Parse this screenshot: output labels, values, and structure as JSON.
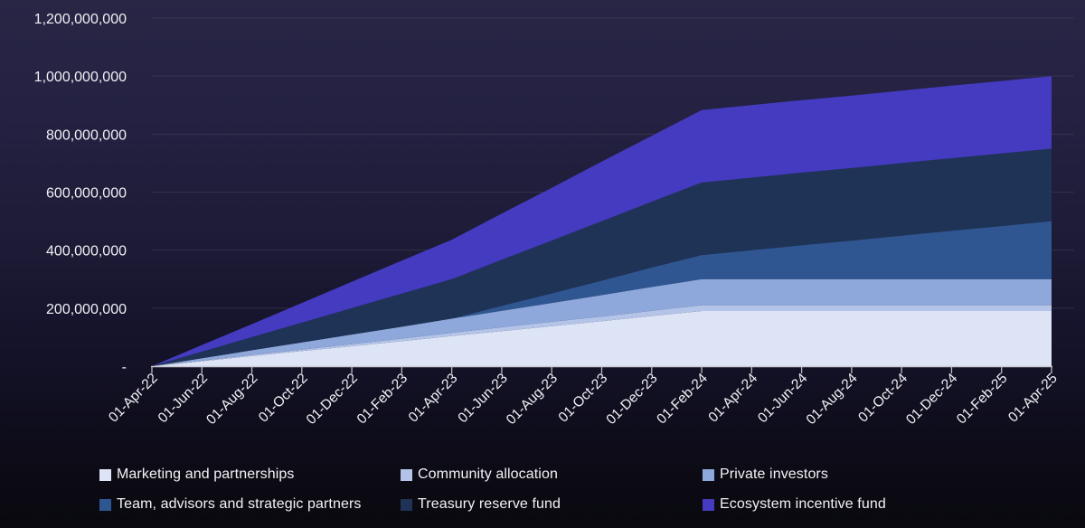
{
  "chart_data": {
    "type": "area",
    "stacked": true,
    "title": "",
    "xlabel": "",
    "ylabel": "",
    "grid": true,
    "legend_position": "bottom",
    "categories": [
      "01-Apr-22",
      "01-Jun-22",
      "01-Aug-22",
      "01-Oct-22",
      "01-Dec-22",
      "01-Feb-23",
      "01-Apr-23",
      "01-Jun-23",
      "01-Aug-23",
      "01-Oct-23",
      "01-Dec-23",
      "01-Feb-24",
      "01-Apr-24",
      "01-Jun-24",
      "01-Aug-24",
      "01-Oct-24",
      "01-Dec-24",
      "01-Feb-25",
      "01-Apr-25"
    ],
    "series": [
      {
        "name": "Marketing and partnerships",
        "color": "#dde4f5",
        "values": [
          0,
          17000000,
          35000000,
          52000000,
          69000000,
          86000000,
          104000000,
          121000000,
          138000000,
          155000000,
          173000000,
          190000000,
          190000000,
          190000000,
          190000000,
          190000000,
          190000000,
          190000000,
          190000000
        ]
      },
      {
        "name": "Community allocation",
        "color": "#b3c4e8",
        "values": [
          0,
          2000000,
          4000000,
          5000000,
          7000000,
          9000000,
          11000000,
          13000000,
          15000000,
          16000000,
          18000000,
          20000000,
          20000000,
          20000000,
          20000000,
          20000000,
          20000000,
          20000000,
          20000000
        ]
      },
      {
        "name": "Private investors",
        "color": "#8ea8db",
        "values": [
          0,
          8000000,
          16000000,
          25000000,
          33000000,
          41000000,
          49000000,
          57000000,
          65000000,
          74000000,
          82000000,
          90000000,
          90000000,
          90000000,
          90000000,
          90000000,
          90000000,
          90000000,
          90000000
        ]
      },
      {
        "name": "Team, advisors and strategic partners",
        "color": "#305692",
        "values": [
          0,
          0,
          0,
          0,
          0,
          0,
          0,
          17000000,
          33000000,
          50000000,
          67000000,
          83000000,
          100000000,
          117000000,
          133000000,
          150000000,
          167000000,
          183000000,
          200000000
        ]
      },
      {
        "name": "Treasury reserve fund",
        "color": "#1f3356",
        "values": [
          0,
          23000000,
          45000000,
          68000000,
          91000000,
          114000000,
          136000000,
          159000000,
          182000000,
          205000000,
          227000000,
          250000000,
          250000000,
          250000000,
          250000000,
          250000000,
          250000000,
          250000000,
          250000000
        ]
      },
      {
        "name": "Ecosystem incentive fund",
        "color": "#443bc0",
        "values": [
          0,
          23000000,
          45000000,
          68000000,
          91000000,
          114000000,
          136000000,
          159000000,
          182000000,
          205000000,
          227000000,
          250000000,
          250000000,
          250000000,
          250000000,
          250000000,
          250000000,
          250000000,
          250000000
        ]
      }
    ],
    "y_axis": {
      "min": 0,
      "max": 1200000000,
      "step": 200000000,
      "tick_labels": [
        "-",
        "200,000,000",
        "400,000,000",
        "600,000,000",
        "800,000,000",
        "1,000,000,000",
        "1,200,000,000"
      ]
    }
  },
  "colors": {
    "grid_line": "#4b4866",
    "axis_line": "#c9c9d2",
    "tick_mark": "#b9b9c4",
    "axis_text": "#f1f1f6",
    "legend_text": "#f2f2f6"
  }
}
